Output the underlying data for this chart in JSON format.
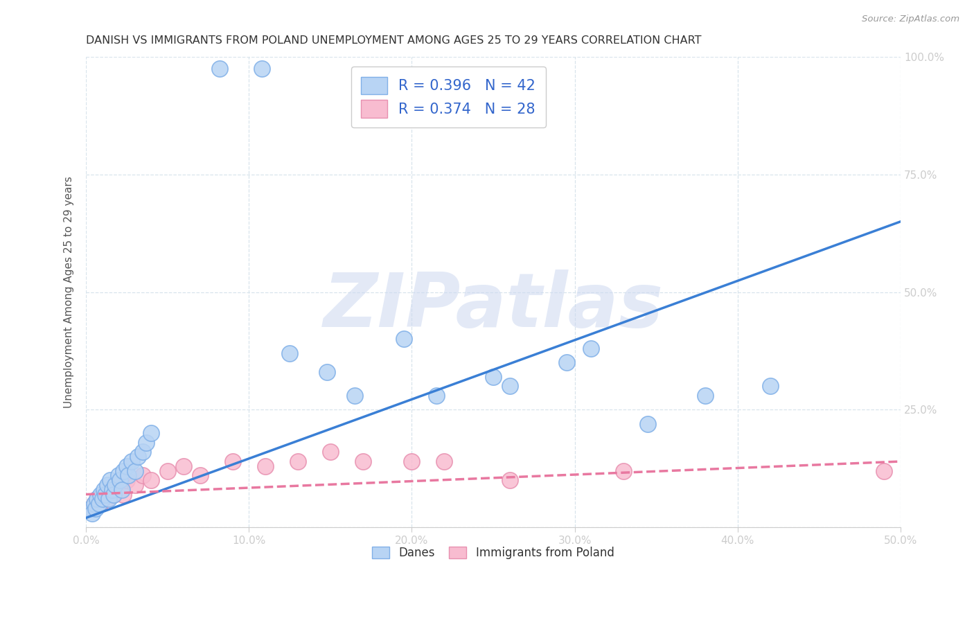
{
  "title": "DANISH VS IMMIGRANTS FROM POLAND UNEMPLOYMENT AMONG AGES 25 TO 29 YEARS CORRELATION CHART",
  "source": "Source: ZipAtlas.com",
  "ylabel": "Unemployment Among Ages 25 to 29 years",
  "xlim": [
    0.0,
    0.5
  ],
  "ylim": [
    0.0,
    1.0
  ],
  "xticks": [
    0.0,
    0.1,
    0.2,
    0.3,
    0.4,
    0.5
  ],
  "xticklabels": [
    "0.0%",
    "10.0%",
    "20.0%",
    "30.0%",
    "40.0%",
    "50.0%"
  ],
  "yticks": [
    0.0,
    0.25,
    0.5,
    0.75,
    1.0
  ],
  "yticklabels": [
    "",
    "25.0%",
    "50.0%",
    "75.0%",
    "100.0%"
  ],
  "danes_color": "#b8d4f4",
  "danes_edge_color": "#80b0e8",
  "poland_color": "#f8bcd0",
  "poland_edge_color": "#e890b0",
  "blue_line_color": "#3a7fd5",
  "pink_line_color": "#e878a0",
  "danes_R": 0.396,
  "danes_N": 42,
  "poland_R": 0.374,
  "poland_N": 28,
  "danes_scatter_x": [
    0.003,
    0.004,
    0.005,
    0.006,
    0.007,
    0.008,
    0.009,
    0.01,
    0.011,
    0.012,
    0.013,
    0.014,
    0.015,
    0.016,
    0.017,
    0.018,
    0.02,
    0.021,
    0.022,
    0.023,
    0.025,
    0.026,
    0.028,
    0.03,
    0.032,
    0.035,
    0.037,
    0.04,
    0.082,
    0.108,
    0.125,
    0.148,
    0.165,
    0.195,
    0.215,
    0.25,
    0.26,
    0.295,
    0.31,
    0.345,
    0.38,
    0.42
  ],
  "danes_scatter_y": [
    0.04,
    0.03,
    0.05,
    0.04,
    0.06,
    0.05,
    0.07,
    0.06,
    0.08,
    0.07,
    0.09,
    0.06,
    0.1,
    0.08,
    0.07,
    0.09,
    0.11,
    0.1,
    0.08,
    0.12,
    0.13,
    0.11,
    0.14,
    0.12,
    0.15,
    0.16,
    0.18,
    0.2,
    0.975,
    0.975,
    0.37,
    0.33,
    0.28,
    0.4,
    0.28,
    0.32,
    0.3,
    0.35,
    0.38,
    0.22,
    0.28,
    0.3
  ],
  "poland_scatter_x": [
    0.003,
    0.005,
    0.007,
    0.009,
    0.011,
    0.013,
    0.015,
    0.017,
    0.019,
    0.021,
    0.023,
    0.025,
    0.03,
    0.035,
    0.04,
    0.05,
    0.06,
    0.07,
    0.09,
    0.11,
    0.13,
    0.15,
    0.17,
    0.2,
    0.22,
    0.26,
    0.33,
    0.49
  ],
  "poland_scatter_y": [
    0.04,
    0.05,
    0.06,
    0.05,
    0.07,
    0.06,
    0.08,
    0.07,
    0.09,
    0.08,
    0.07,
    0.1,
    0.09,
    0.11,
    0.1,
    0.12,
    0.13,
    0.11,
    0.14,
    0.13,
    0.14,
    0.16,
    0.14,
    0.14,
    0.14,
    0.1,
    0.12,
    0.12
  ],
  "blue_line_x0": 0.0,
  "blue_line_y0": 0.02,
  "blue_line_x1": 0.5,
  "blue_line_y1": 0.65,
  "pink_line_x0": 0.0,
  "pink_line_y0": 0.07,
  "pink_line_x1": 0.5,
  "pink_line_y1": 0.14,
  "watermark_text": "ZIPatlas",
  "watermark_color": "#ccd8f0",
  "background_color": "#ffffff",
  "grid_color": "#d8e4ec",
  "title_fontsize": 11.5,
  "axis_label_fontsize": 11,
  "tick_fontsize": 11,
  "legend_fontsize": 15
}
